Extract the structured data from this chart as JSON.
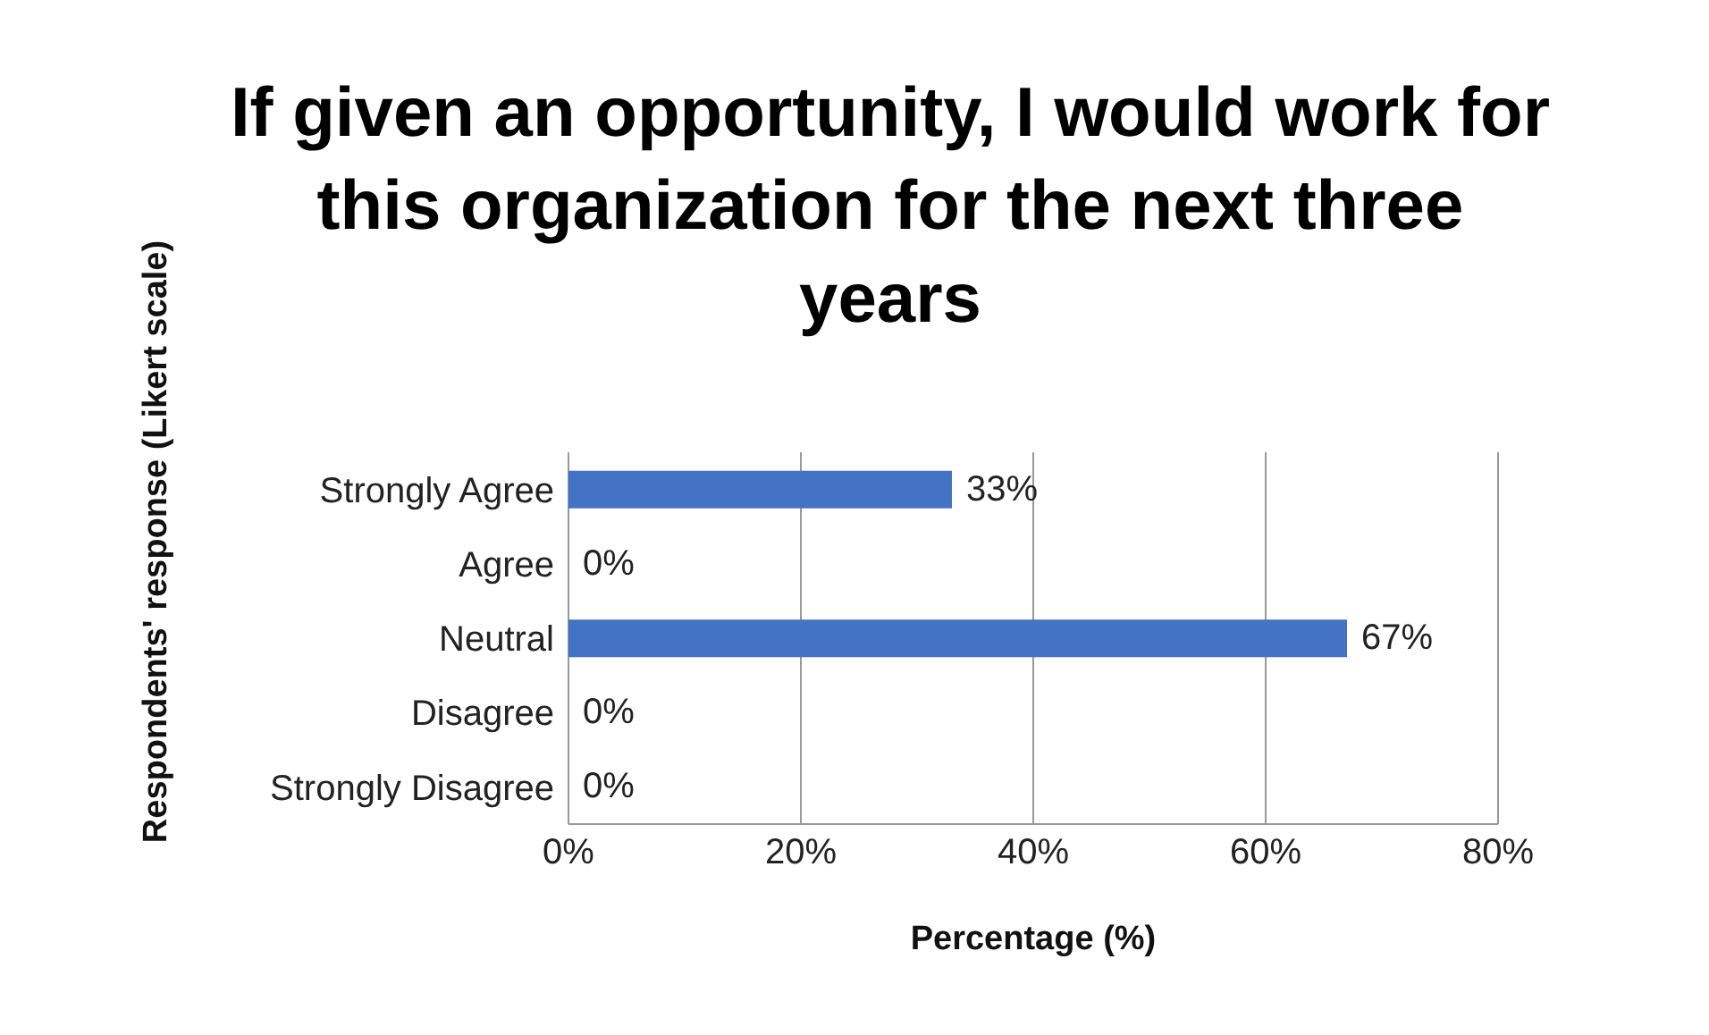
{
  "chart_data": {
    "type": "bar",
    "orientation": "horizontal",
    "title": "If given an opportunity, I would work for this organization for the next three years",
    "xlabel": "Percentage (%)",
    "ylabel": "Respondents' response (Likert scale)",
    "categories": [
      "Strongly Agree",
      "Agree",
      "Neutral",
      "Disagree",
      "Strongly Disagree"
    ],
    "values": [
      33,
      0,
      67,
      0,
      0
    ],
    "value_labels": [
      "33%",
      "0%",
      "67%",
      "0%",
      "0%"
    ],
    "color": "#4472c4",
    "xlim": [
      0,
      80
    ],
    "xticks": [
      {
        "value": 0,
        "label": "0%"
      },
      {
        "value": 20,
        "label": "20%"
      },
      {
        "value": 40,
        "label": "40%"
      },
      {
        "value": 60,
        "label": "60%"
      },
      {
        "value": 80,
        "label": "80%"
      }
    ],
    "grid": "x"
  }
}
